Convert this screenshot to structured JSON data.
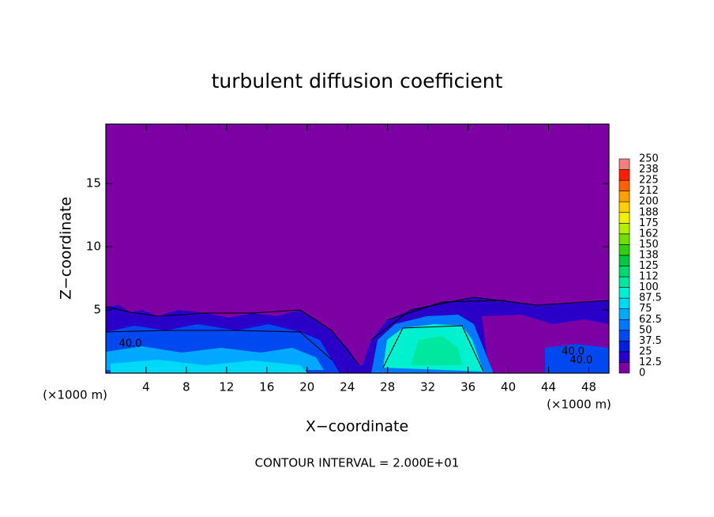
{
  "chart_data": {
    "type": "contour",
    "title": "turbulent diffusion coefficient",
    "xlabel": "X−coordinate",
    "ylabel": "Z−coordinate",
    "x_unit_label": "(×1000 m)",
    "note": "CONTOUR INTERVAL = 2.000E+01",
    "xlim": [
      0,
      50
    ],
    "ylim": [
      0,
      19.7
    ],
    "xticks": [
      4,
      8,
      12,
      16,
      20,
      24,
      28,
      32,
      36,
      40,
      44,
      48
    ],
    "yticks": [
      5,
      10,
      15
    ],
    "contour_labels": [
      {
        "text": "40.0",
        "x": 1.3,
        "y": 2.3
      },
      {
        "text": "40.0",
        "x": 45.3,
        "y": 1.7
      },
      {
        "text": "40.0",
        "x": 46.1,
        "y": 1.0
      }
    ],
    "colorbar": {
      "levels": [
        0,
        12.5,
        25,
        37.5,
        50,
        62.5,
        75,
        87.5,
        100,
        112,
        125,
        138,
        150,
        162,
        175,
        188,
        200,
        212,
        225,
        238,
        250
      ],
      "colors": [
        "#7d00a5",
        "#2a00c8",
        "#0020e0",
        "#0048f0",
        "#0078ff",
        "#00a8ff",
        "#00d8f8",
        "#00f0d0",
        "#00e8a0",
        "#00d870",
        "#00c840",
        "#30d010",
        "#70e000",
        "#b0f000",
        "#f0f000",
        "#ffd000",
        "#ffa000",
        "#ff6000",
        "#ff2000",
        "#f08080"
      ]
    }
  }
}
